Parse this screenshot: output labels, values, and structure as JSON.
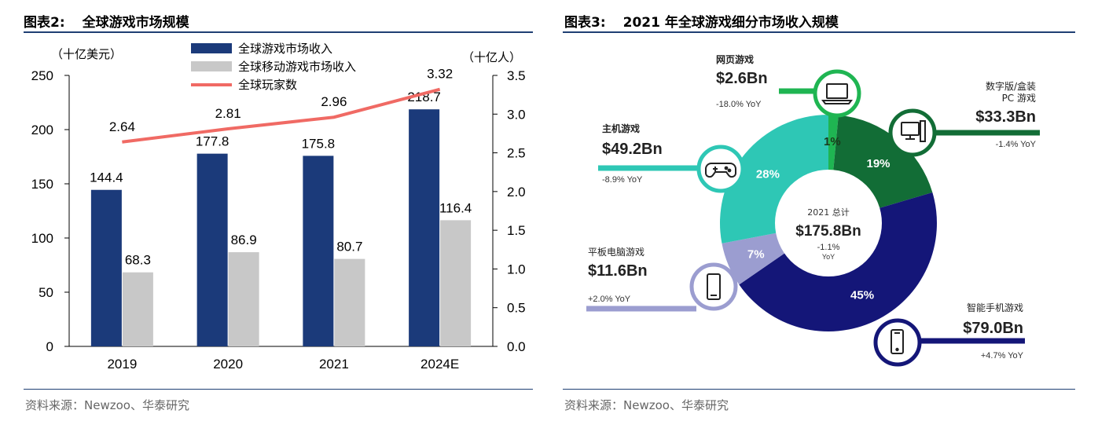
{
  "left": {
    "figure_label": "图表2:",
    "figure_title": "全球游戏市场规模",
    "source": "资料来源：Newzoo、华泰研究"
  },
  "right": {
    "figure_label": "图表3:",
    "figure_title": "2021 年全球游戏细分市场收入规模",
    "source": "资料来源：Newzoo、华泰研究"
  },
  "chart_data": [
    {
      "type": "bar",
      "categories": [
        "2019",
        "2020",
        "2021",
        "2024E"
      ],
      "series": [
        {
          "name": "全球游戏市场收入",
          "axis": "left",
          "values": [
            144.4,
            177.8,
            175.8,
            218.7
          ],
          "color": "#1b3a7a"
        },
        {
          "name": "全球移动游戏市场收入",
          "axis": "left",
          "values": [
            68.3,
            86.9,
            80.7,
            116.4
          ],
          "color": "#c8c8c8"
        },
        {
          "name": "全球玩家数",
          "type": "line",
          "axis": "right",
          "values": [
            2.64,
            2.81,
            2.96,
            3.32
          ],
          "color": "#f06a64"
        }
      ],
      "line_labels": [
        "2.64",
        "2.81",
        "2.96",
        "3.32"
      ],
      "bar_labels": [
        [
          "144.4",
          "177.8",
          "175.8",
          "218.7"
        ],
        [
          "68.3",
          "86.9",
          "80.7",
          "116.4"
        ]
      ],
      "ylabel_left": "（十亿美元）",
      "ylabel_right": "（十亿人）",
      "ylim_left": [
        0,
        250
      ],
      "ylim_right": [
        0,
        3.5
      ],
      "yticks_left": [
        "0",
        "50",
        "100",
        "150",
        "200",
        "250"
      ],
      "yticks_right": [
        "0.0",
        "0.5",
        "1.0",
        "1.5",
        "2.0",
        "2.5",
        "3.0",
        "3.5"
      ],
      "legend_placement": "top-center"
    },
    {
      "type": "pie",
      "center_label": {
        "title": "2021 总计",
        "value": "$175.8Bn",
        "yoy_line1": "-1.1%",
        "yoy_line2": "YoY"
      },
      "segments": [
        {
          "name": "网页游戏",
          "value": 2.6,
          "pct_label": "1%",
          "color": "#1fb552",
          "icon": "laptop-icon",
          "name_label": "网页游戏",
          "value_label": "$2.6Bn",
          "yoy": "-18.0% YoY"
        },
        {
          "name": "数字版/盒装 PC 游戏",
          "value": 33.3,
          "pct_label": "19%",
          "color": "#126d36",
          "icon": "desktop-pc-icon",
          "name_label_1": "数字版/盒装",
          "name_label_2": "PC 游戏",
          "value_label": "$33.3Bn",
          "yoy": "-1.4% YoY"
        },
        {
          "name": "智能手机游戏",
          "value": 79.0,
          "pct_label": "45%",
          "color": "#141678",
          "icon": "smartphone-icon",
          "name_label": "智能手机游戏",
          "value_label": "$79.0Bn",
          "yoy": "+4.7% YoY"
        },
        {
          "name": "平板电脑游戏",
          "value": 11.6,
          "pct_label": "7%",
          "color": "#9b9dd0",
          "icon": "tablet-icon",
          "name_label": "平板电脑游戏",
          "value_label": "$11.6Bn",
          "yoy": "+2.0% YoY"
        },
        {
          "name": "主机游戏",
          "value": 49.2,
          "pct_label": "28%",
          "color": "#2ec7b5",
          "icon": "gamepad-icon",
          "name_label": "主机游戏",
          "value_label": "$49.2Bn",
          "yoy": "-8.9% YoY"
        }
      ]
    }
  ]
}
